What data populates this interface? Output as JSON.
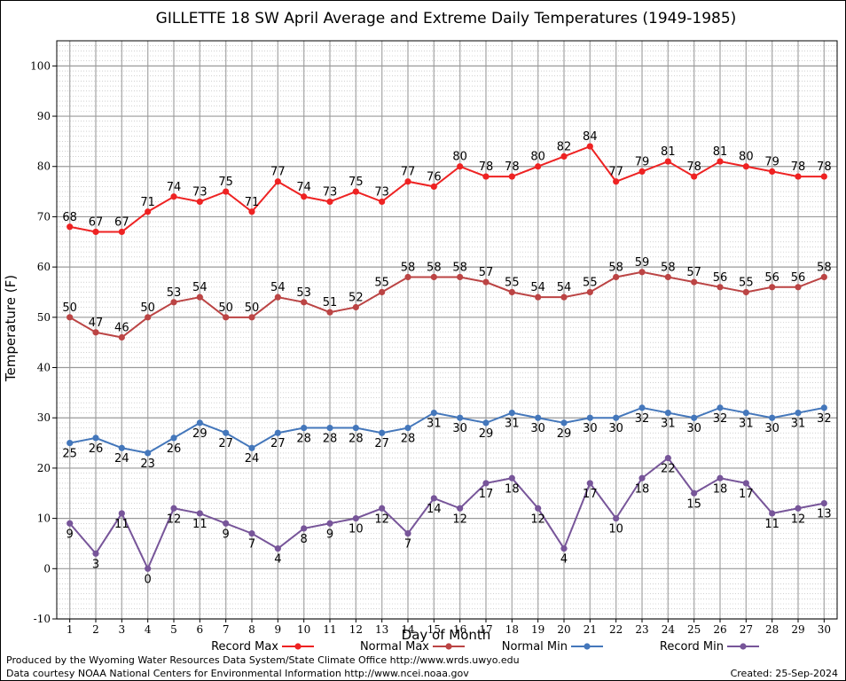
{
  "chart_data": {
    "type": "line",
    "title": "GILLETTE 18 SW April Average and Extreme Daily Temperatures (1949-1985)",
    "xlabel": "Day of Month",
    "ylabel": "Temperature (F)",
    "x": [
      1,
      2,
      3,
      4,
      5,
      6,
      7,
      8,
      9,
      10,
      11,
      12,
      13,
      14,
      15,
      16,
      17,
      18,
      19,
      20,
      21,
      22,
      23,
      24,
      25,
      26,
      27,
      28,
      29,
      30
    ],
    "ylim": [
      -10,
      105
    ],
    "yticks": [
      -10,
      0,
      10,
      20,
      30,
      40,
      50,
      60,
      70,
      80,
      90,
      100
    ],
    "grid": true,
    "legend_position": "bottom",
    "series": [
      {
        "name": "Record Max",
        "color": "#ee2222",
        "label_position": "above",
        "values": [
          68,
          67,
          67,
          71,
          74,
          73,
          75,
          71,
          77,
          74,
          73,
          75,
          73,
          77,
          76,
          80,
          78,
          78,
          80,
          82,
          84,
          77,
          79,
          81,
          78,
          81,
          80,
          79,
          78,
          78
        ]
      },
      {
        "name": "Normal Max",
        "color": "#bb4444",
        "label_position": "above",
        "values": [
          50,
          47,
          46,
          50,
          53,
          54,
          50,
          50,
          54,
          53,
          51,
          52,
          55,
          58,
          58,
          58,
          57,
          55,
          54,
          54,
          55,
          58,
          59,
          58,
          57,
          56,
          55,
          56,
          56,
          58
        ]
      },
      {
        "name": "Normal Min",
        "color": "#4477bb",
        "label_position": "below",
        "values": [
          25,
          26,
          24,
          23,
          26,
          29,
          27,
          24,
          27,
          28,
          28,
          28,
          27,
          28,
          31,
          30,
          29,
          31,
          30,
          29,
          30,
          30,
          32,
          31,
          30,
          32,
          31,
          30,
          31,
          32
        ]
      },
      {
        "name": "Record Min",
        "color": "#775599",
        "label_position": "below",
        "values": [
          9,
          3,
          11,
          0,
          12,
          11,
          9,
          7,
          4,
          8,
          9,
          10,
          12,
          7,
          14,
          12,
          17,
          18,
          12,
          4,
          17,
          10,
          18,
          22,
          15,
          18,
          17,
          11,
          12,
          13
        ]
      }
    ]
  },
  "footer": {
    "produced_by": "Produced by the Wyoming Water Resources Data System/State Climate Office http://www.wrds.uwyo.edu",
    "data_courtesy": "Data courtesy NOAA National Centers for Environmental Information http://www.ncei.noaa.gov",
    "created": "Created: 25-Sep-2024"
  }
}
